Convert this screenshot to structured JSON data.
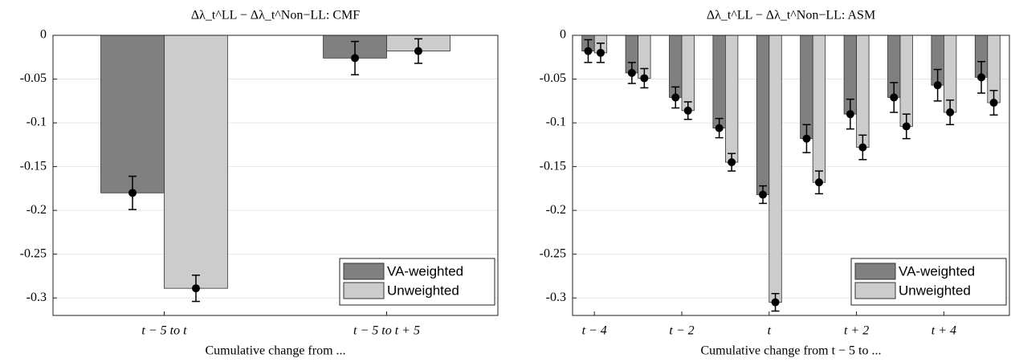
{
  "chart_data": [
    {
      "type": "bar",
      "title": "Δλ_t^LL − Δλ_t^Non−LL: CMF",
      "xlabel": "Cumulative change from ...",
      "categories": [
        "t − 5  to  t",
        "t − 5  to  t + 5"
      ],
      "series": [
        {
          "name": "VA-weighted",
          "color": "#808080",
          "values": [
            -0.18,
            -0.026
          ],
          "errors": [
            0.019,
            0.019
          ]
        },
        {
          "name": "Unweighted",
          "color": "#cccccc",
          "values": [
            -0.289,
            -0.018
          ],
          "errors": [
            0.015,
            0.014
          ]
        }
      ],
      "ylim": [
        -0.32,
        0
      ],
      "yticks": [
        0,
        -0.05,
        -0.1,
        -0.15,
        -0.2,
        -0.25,
        -0.3
      ],
      "grid": true,
      "legend": "lower right"
    },
    {
      "type": "bar",
      "title": "Δλ_t^LL − Δλ_t^Non−LL: ASM",
      "xlabel": "Cumulative change from t − 5 to ...",
      "categories": [
        "t − 4",
        null,
        "t − 2",
        null,
        "t",
        null,
        "t + 2",
        null,
        "t + 4",
        null
      ],
      "series": [
        {
          "name": "VA-weighted",
          "color": "#808080",
          "values": [
            -0.018,
            -0.043,
            -0.071,
            -0.106,
            -0.182,
            -0.118,
            -0.09,
            -0.071,
            -0.057,
            -0.048
          ],
          "errors": [
            0.013,
            0.012,
            0.012,
            0.011,
            0.01,
            0.016,
            0.017,
            0.017,
            0.018,
            0.018
          ]
        },
        {
          "name": "Unweighted",
          "color": "#cccccc",
          "values": [
            -0.02,
            -0.049,
            -0.086,
            -0.145,
            -0.305,
            -0.168,
            -0.128,
            -0.104,
            -0.088,
            -0.077
          ],
          "errors": [
            0.011,
            0.011,
            0.01,
            0.01,
            0.01,
            0.013,
            0.014,
            0.014,
            0.014,
            0.014
          ]
        }
      ],
      "ylim": [
        -0.32,
        0
      ],
      "yticks": [
        0,
        -0.05,
        -0.1,
        -0.15,
        -0.2,
        -0.25,
        -0.3
      ],
      "grid": true,
      "legend": "lower right"
    }
  ]
}
